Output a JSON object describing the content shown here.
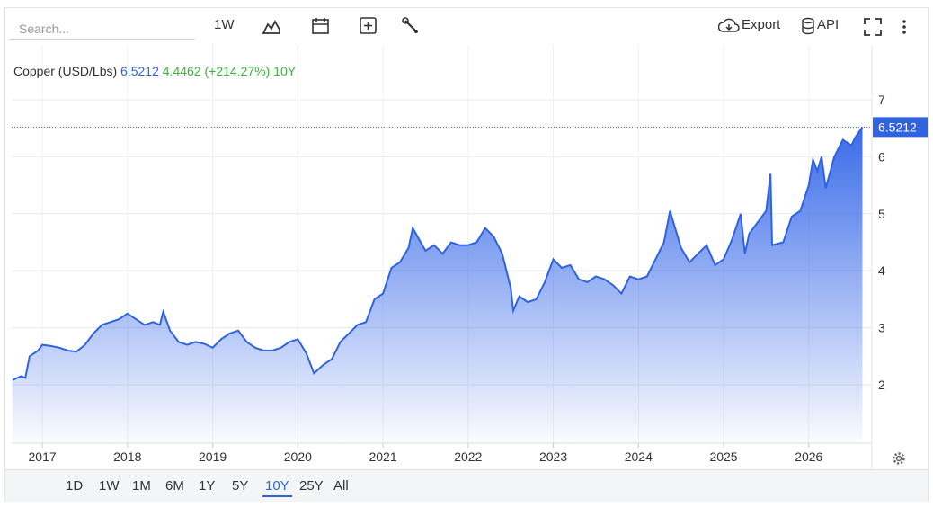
{
  "ui": {
    "search_placeholder": "Search...",
    "interval": "1W",
    "export": "Export",
    "api": "API",
    "ranges": [
      "1D",
      "1W",
      "1M",
      "6M",
      "1Y",
      "5Y",
      "10Y",
      "25Y",
      "All"
    ],
    "active_range": "10Y"
  },
  "chart_data": {
    "type": "area",
    "title": "Copper (USD/Lbs)",
    "header": {
      "last": 6.5212,
      "change": 4.4462,
      "change_label": "(+214.27%)",
      "period": "10Y"
    },
    "color": "#2f63e0",
    "x": [
      2016.65,
      2016.75,
      2016.8,
      2016.85,
      2016.95,
      2017.0,
      2017.1,
      2017.2,
      2017.3,
      2017.4,
      2017.5,
      2017.6,
      2017.7,
      2017.8,
      2017.9,
      2018.0,
      2018.1,
      2018.2,
      2018.3,
      2018.38,
      2018.42,
      2018.5,
      2018.6,
      2018.7,
      2018.8,
      2018.9,
      2019.0,
      2019.1,
      2019.2,
      2019.3,
      2019.4,
      2019.5,
      2019.6,
      2019.7,
      2019.8,
      2019.9,
      2020.0,
      2020.1,
      2020.19,
      2020.3,
      2020.4,
      2020.5,
      2020.6,
      2020.7,
      2020.8,
      2020.9,
      2021.0,
      2021.1,
      2021.2,
      2021.3,
      2021.35,
      2021.5,
      2021.6,
      2021.7,
      2021.8,
      2021.9,
      2022.0,
      2022.1,
      2022.2,
      2022.3,
      2022.4,
      2022.5,
      2022.53,
      2022.6,
      2022.7,
      2022.8,
      2022.9,
      2023.0,
      2023.1,
      2023.2,
      2023.3,
      2023.4,
      2023.5,
      2023.6,
      2023.7,
      2023.8,
      2023.9,
      2024.0,
      2024.1,
      2024.2,
      2024.3,
      2024.37,
      2024.5,
      2024.6,
      2024.7,
      2024.8,
      2024.9,
      2025.0,
      2025.1,
      2025.2,
      2025.25,
      2025.3,
      2025.4,
      2025.5,
      2025.55,
      2025.57,
      2025.7,
      2025.8,
      2025.9,
      2026.0,
      2026.05,
      2026.1,
      2026.15,
      2026.2,
      2026.3,
      2026.4,
      2026.5,
      2026.55,
      2026.63
    ],
    "values": [
      2.08,
      2.15,
      2.12,
      2.5,
      2.6,
      2.7,
      2.68,
      2.65,
      2.6,
      2.58,
      2.7,
      2.9,
      3.05,
      3.1,
      3.15,
      3.25,
      3.15,
      3.05,
      3.1,
      3.05,
      3.28,
      2.95,
      2.75,
      2.7,
      2.75,
      2.72,
      2.65,
      2.8,
      2.9,
      2.95,
      2.75,
      2.65,
      2.6,
      2.6,
      2.65,
      2.75,
      2.8,
      2.55,
      2.2,
      2.35,
      2.45,
      2.75,
      2.9,
      3.05,
      3.1,
      3.5,
      3.6,
      4.05,
      4.15,
      4.4,
      4.75,
      4.35,
      4.45,
      4.3,
      4.5,
      4.45,
      4.45,
      4.5,
      4.75,
      4.6,
      4.3,
      3.7,
      3.3,
      3.55,
      3.45,
      3.5,
      3.8,
      4.2,
      4.05,
      4.1,
      3.85,
      3.8,
      3.9,
      3.85,
      3.75,
      3.6,
      3.9,
      3.85,
      3.9,
      4.2,
      4.5,
      5.05,
      4.4,
      4.15,
      4.3,
      4.45,
      4.1,
      4.2,
      4.55,
      5.0,
      4.3,
      4.65,
      4.85,
      5.05,
      5.7,
      4.45,
      4.5,
      4.95,
      5.05,
      5.5,
      5.95,
      5.75,
      6.0,
      5.45,
      6.0,
      6.3,
      6.2,
      6.35,
      6.5212
    ],
    "xlim": [
      2016.64,
      2026.72
    ],
    "xticks": [
      2017,
      2018,
      2019,
      2020,
      2021,
      2022,
      2023,
      2024,
      2025,
      2026
    ],
    "ylim": [
      1,
      8
    ],
    "yticks": [
      2,
      3,
      4,
      5,
      6,
      7
    ],
    "grid": true,
    "y_axis_side": "right"
  }
}
